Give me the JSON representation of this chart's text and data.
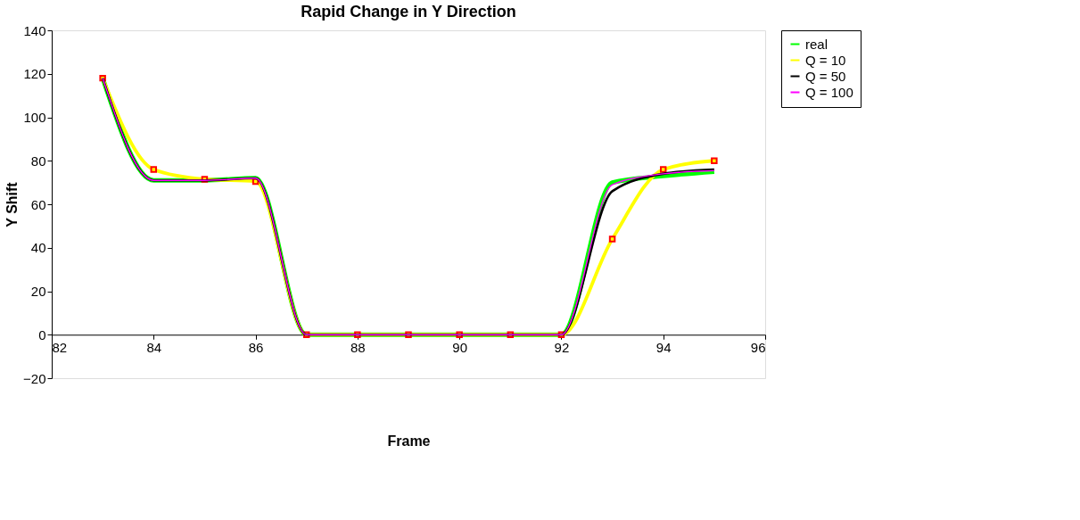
{
  "chart_data": {
    "type": "line",
    "title": "Rapid Change in Y Direction",
    "xlabel": "Frame",
    "ylabel": "Y Shift",
    "x": [
      83,
      84,
      85,
      86,
      87,
      88,
      89,
      90,
      91,
      92,
      93,
      94,
      95
    ],
    "series": [
      {
        "name": "real",
        "color": "#00ff00",
        "marker": "none",
        "values": [
          118,
          71,
          71,
          72,
          0,
          0,
          0,
          0,
          0,
          0,
          70,
          73,
          75
        ]
      },
      {
        "name": "Q = 10",
        "color": "#ffff00",
        "marker": "square",
        "values": [
          118,
          76,
          71.5,
          70.5,
          0,
          0,
          0,
          0,
          0,
          0,
          44,
          76,
          80
        ]
      },
      {
        "name": "Q = 50",
        "color": "#000000",
        "marker": "none",
        "values": [
          118,
          71,
          71,
          72,
          0,
          0,
          0,
          0,
          0,
          0,
          66,
          74,
          76
        ]
      },
      {
        "name": "Q = 100",
        "color": "#ff00ff",
        "marker": "none",
        "values": [
          118,
          71,
          71,
          72,
          0,
          0,
          0,
          0,
          0,
          0,
          69,
          74,
          75.5
        ]
      }
    ],
    "xlim": [
      82,
      96
    ],
    "xticks": [
      82,
      84,
      86,
      88,
      90,
      92,
      94,
      96
    ],
    "ylim": [
      -20,
      140
    ],
    "yticks": [
      -20,
      0,
      20,
      40,
      60,
      80,
      100,
      120,
      140
    ],
    "grid": false,
    "legend": "right"
  }
}
